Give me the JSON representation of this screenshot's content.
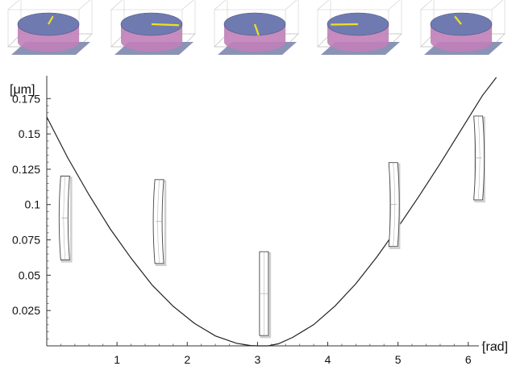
{
  "chart_data": {
    "type": "line",
    "title": "",
    "xlabel": "[rad]",
    "ylabel": "[μm]",
    "xlim": [
      0,
      6.45
    ],
    "ylim": [
      0,
      0.19
    ],
    "x_ticks": [
      1,
      2,
      3,
      4,
      5,
      6
    ],
    "y_ticks": [
      0.025,
      0.05,
      0.075,
      0.1,
      0.125,
      0.15,
      0.175
    ],
    "x_tick_labels": [
      "1",
      "2",
      "3",
      "4",
      "5",
      "6"
    ],
    "y_tick_labels": [
      "0.025",
      "0.05",
      "0.075",
      "0.1",
      "0.125",
      "0.15",
      "0.175"
    ],
    "grid": false,
    "series": [
      {
        "x": [
          0,
          0.3,
          0.6,
          0.9,
          1.2,
          1.5,
          1.8,
          2.1,
          2.4,
          2.7,
          2.9,
          3.0,
          3.15,
          3.3,
          3.5,
          3.8,
          4.1,
          4.4,
          4.7,
          5.0,
          5.3,
          5.6,
          5.9,
          6.2,
          6.4
        ],
        "y": [
          0.162,
          0.133,
          0.107,
          0.083,
          0.062,
          0.043,
          0.028,
          0.016,
          0.007,
          0.0018,
          0.0002,
          0,
          0,
          0.0015,
          0.006,
          0.015,
          0.028,
          0.044,
          0.063,
          0.084,
          0.106,
          0.129,
          0.153,
          0.177,
          0.19
        ]
      }
    ],
    "inset_angles": [
      0.17,
      1.51,
      3.0,
      4.84,
      6.05
    ],
    "inset_y_centers": [
      0.0905,
      0.088,
      0.037,
      0.1,
      0.133
    ],
    "top_thumbnail_angles": [
      0.17,
      1.51,
      3.0,
      4.84,
      6.05
    ],
    "colors": {
      "curve": "#222222",
      "thumb_highlight": "#f0e020",
      "thumb_top": "#6f7bb0",
      "thumb_side": "#c080b8",
      "thumb_base": "#8a93b5"
    }
  }
}
